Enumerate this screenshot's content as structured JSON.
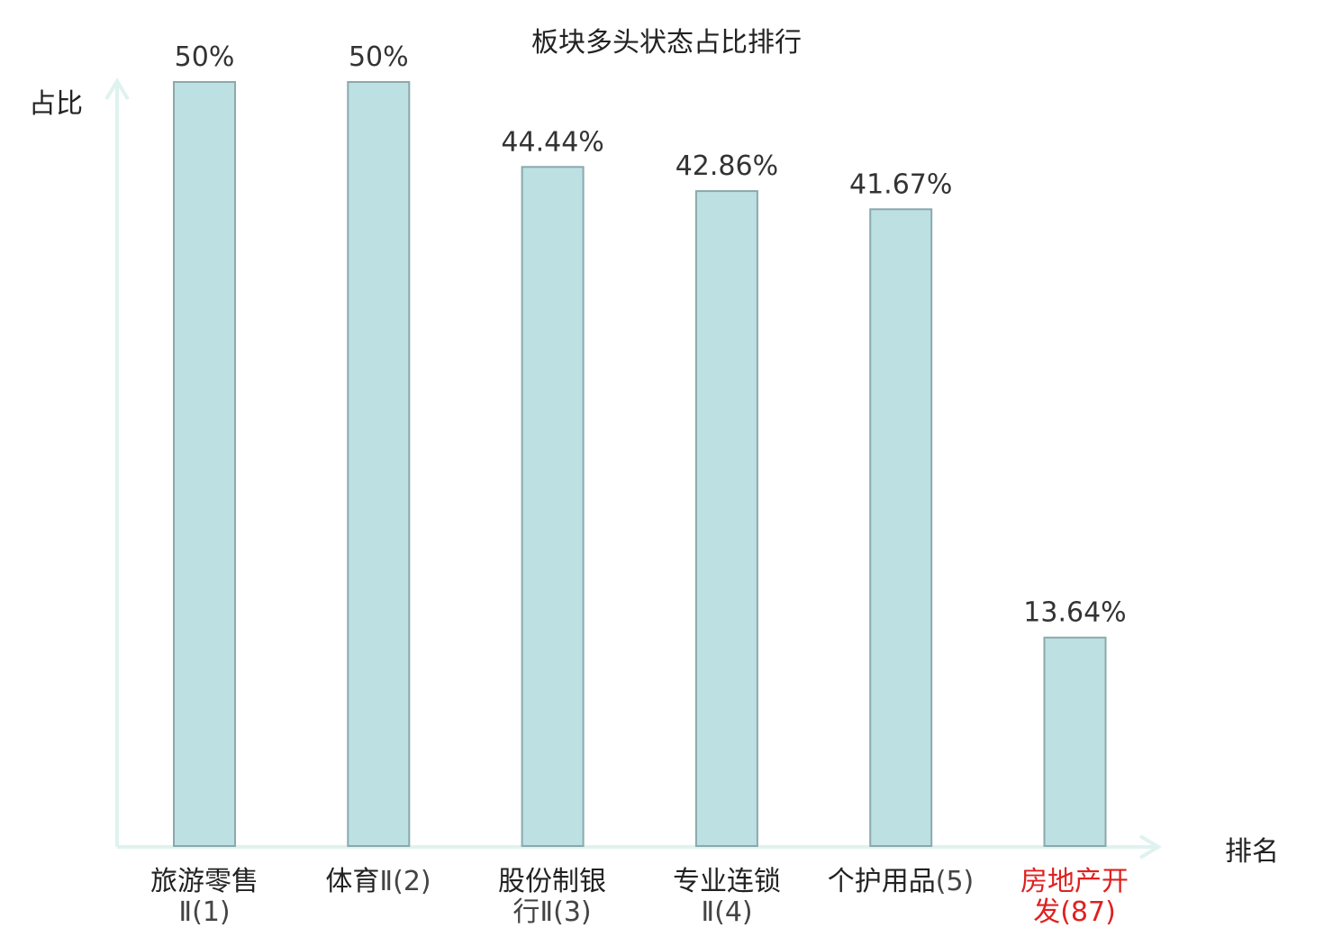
{
  "chart_data": {
    "type": "bar",
    "title": "板块多头状态占比排行",
    "ylabel": "占比",
    "xlabel": "排名",
    "ylim": [
      0,
      50
    ],
    "grid": false,
    "bar_color": "#bde0e3",
    "bar_border_color": "#8aa9ad",
    "axis_color": "#dff2ef",
    "highlight_color": "#e02020",
    "categories": [
      {
        "main": "旅游零售",
        "sub": "Ⅱ(1)",
        "highlight": false
      },
      {
        "main": "体育",
        "sub": "Ⅱ(2)",
        "highlight": false
      },
      {
        "main": "股份制银",
        "sub": "行Ⅱ(3)",
        "highlight": false
      },
      {
        "main": "专业连锁",
        "sub": "Ⅱ(4)",
        "highlight": false
      },
      {
        "main": "个护用品",
        "sub": "(5)",
        "highlight": false
      },
      {
        "main": "房地产开",
        "sub": "发(87)",
        "highlight": true
      }
    ],
    "values": [
      50,
      50,
      44.44,
      42.86,
      41.67,
      13.64
    ],
    "value_labels": [
      "50%",
      "50%",
      "44.44%",
      "42.86%",
      "41.67%",
      "13.64%"
    ]
  }
}
